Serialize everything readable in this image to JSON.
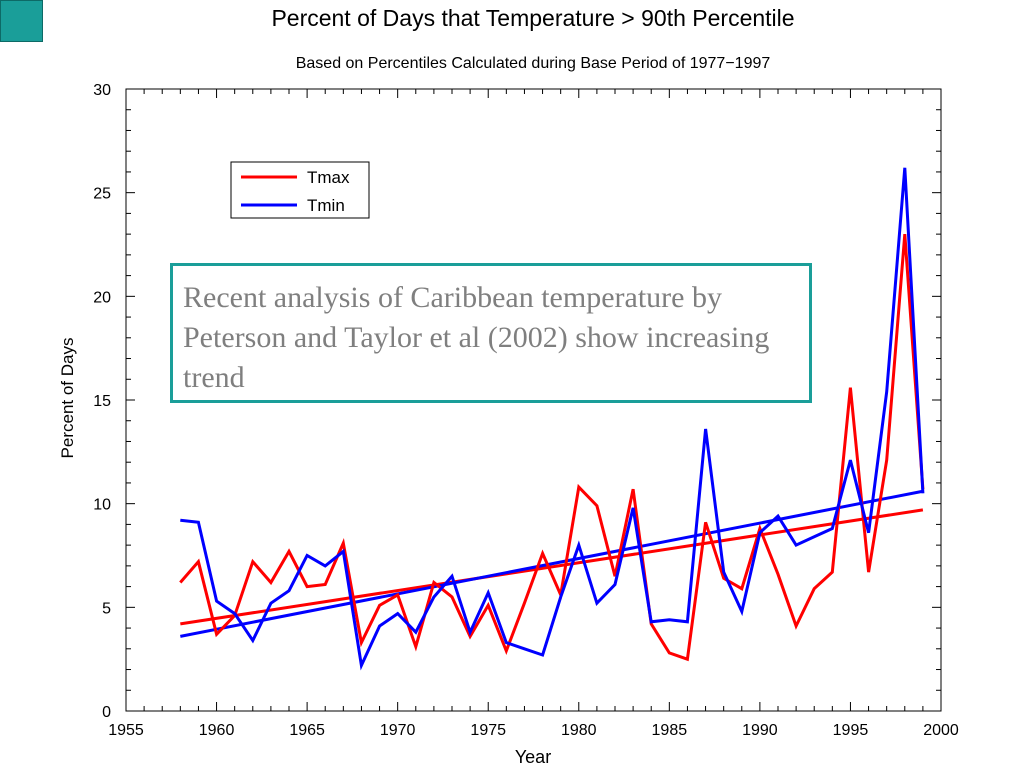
{
  "slide": {
    "accent_color": "#1a9e99",
    "callout_text": "Recent analysis of Caribbean temperature by Peterson and Taylor et al (2002) show increasing trend"
  },
  "chart_data": {
    "type": "line",
    "title": "Percent of Days that Temperature > 90th Percentile",
    "subtitle": "Based on Percentiles Calculated during Base Period of 1977−1997",
    "xlabel": "Year",
    "ylabel": "Percent of Days",
    "xlim": [
      1955,
      2000
    ],
    "ylim": [
      0,
      30
    ],
    "x_ticks": [
      1955,
      1960,
      1965,
      1970,
      1975,
      1980,
      1985,
      1990,
      1995,
      2000
    ],
    "y_ticks": [
      0,
      5,
      10,
      15,
      20,
      25,
      30
    ],
    "grid": false,
    "legend_position": "top-left",
    "x": [
      1958,
      1959,
      1960,
      1961,
      1962,
      1963,
      1964,
      1965,
      1966,
      1967,
      1968,
      1969,
      1970,
      1971,
      1972,
      1973,
      1974,
      1975,
      1976,
      1977,
      1978,
      1979,
      1980,
      1981,
      1982,
      1983,
      1984,
      1985,
      1986,
      1987,
      1988,
      1989,
      1990,
      1991,
      1992,
      1993,
      1994,
      1995,
      1996,
      1997,
      1998,
      1999
    ],
    "series": [
      {
        "name": "Tmax",
        "color": "#ff0000",
        "values": [
          6.2,
          7.2,
          3.7,
          4.6,
          7.2,
          6.2,
          7.7,
          6.0,
          6.1,
          8.1,
          3.3,
          5.1,
          5.6,
          3.1,
          6.2,
          5.5,
          3.6,
          5.1,
          2.9,
          5.2,
          7.6,
          5.6,
          10.8,
          9.9,
          6.5,
          10.7,
          4.2,
          2.8,
          2.5,
          9.1,
          6.4,
          5.9,
          8.8,
          6.6,
          4.1,
          5.9,
          6.7,
          15.6,
          6.7,
          12.1,
          23.0,
          10.7
        ]
      },
      {
        "name": "Tmin",
        "color": "#0000ff",
        "values": [
          9.2,
          9.1,
          5.3,
          4.7,
          3.4,
          5.2,
          5.8,
          7.5,
          7.0,
          7.7,
          2.2,
          4.1,
          4.7,
          3.8,
          5.5,
          6.5,
          3.8,
          5.7,
          3.3,
          3.0,
          2.7,
          5.5,
          8.0,
          5.2,
          6.1,
          9.8,
          4.3,
          4.4,
          4.3,
          13.6,
          6.7,
          4.8,
          8.6,
          9.4,
          8.0,
          8.4,
          8.8,
          12.1,
          8.6,
          15.4,
          26.2,
          10.5
        ]
      }
    ],
    "trend_lines": [
      {
        "series": "Tmax",
        "color": "#ff0000",
        "x": [
          1958,
          1999
        ],
        "y": [
          4.2,
          9.7
        ]
      },
      {
        "series": "Tmin",
        "color": "#0000ff",
        "x": [
          1958,
          1999
        ],
        "y": [
          3.6,
          10.6
        ]
      }
    ]
  }
}
